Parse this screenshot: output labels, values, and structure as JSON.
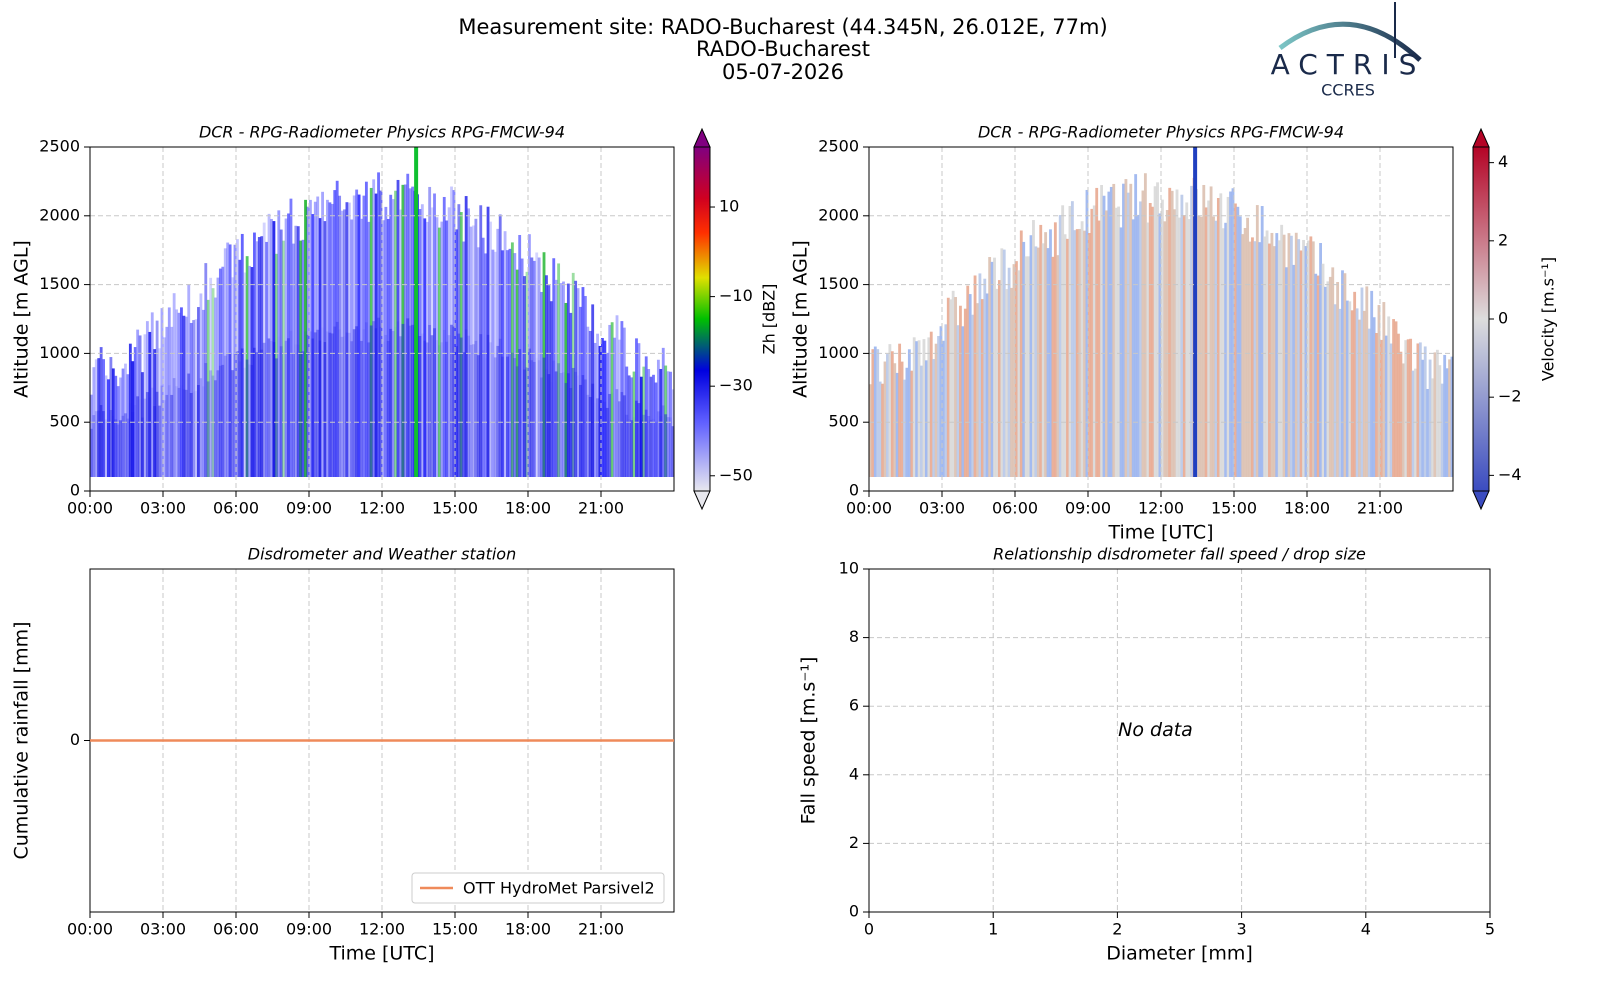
{
  "header": {
    "lines": [
      "Measurement site: RADO-Bucharest (44.345N, 26.012E, 77m)",
      "RADO-Bucharest",
      "05-07-2026"
    ],
    "logo": "ACTRIS",
    "logo_sub": "CCRES"
  },
  "chart_data": [
    {
      "type": "heatmap",
      "title": "DCR - RPG-Radiometer Physics RPG-FMCW-94",
      "ylabel": "Altitude [m AGL]",
      "xlim": [
        0,
        24
      ],
      "xticks": [
        {
          "value": 0,
          "label": "00:00"
        },
        {
          "value": 3,
          "label": "03:00"
        },
        {
          "value": 6,
          "label": "06:00"
        },
        {
          "value": 9,
          "label": "09:00"
        },
        {
          "value": 12,
          "label": "12:00"
        },
        {
          "value": 15,
          "label": "15:00"
        },
        {
          "value": 18,
          "label": "18:00"
        },
        {
          "value": 21,
          "label": "21:00"
        }
      ],
      "ylim": [
        0,
        2500
      ],
      "yticks": [
        0,
        500,
        1000,
        1500,
        2000,
        2500
      ],
      "grid": true,
      "colorbar": {
        "label": "Zh [dBZ]",
        "colormap": "zh",
        "lim": [
          -53.4,
          23.4
        ],
        "ticks": [
          {
            "value": -50,
            "label": "−50"
          },
          {
            "value": -30,
            "label": "−30"
          },
          {
            "value": -10,
            "label": "−10"
          },
          10
        ]
      }
    },
    {
      "type": "heatmap",
      "title": "DCR - RPG-Radiometer Physics RPG-FMCW-94",
      "ylabel": "Altitude [m AGL]",
      "xlabel": "Time [UTC]",
      "xlim": [
        0,
        24
      ],
      "xticks": [
        {
          "value": 0,
          "label": "00:00"
        },
        {
          "value": 3,
          "label": "03:00"
        },
        {
          "value": 6,
          "label": "06:00"
        },
        {
          "value": 9,
          "label": "09:00"
        },
        {
          "value": 12,
          "label": "12:00"
        },
        {
          "value": 15,
          "label": "15:00"
        },
        {
          "value": 18,
          "label": "18:00"
        },
        {
          "value": 21,
          "label": "21:00"
        }
      ],
      "ylim": [
        0,
        2500
      ],
      "yticks": [
        0,
        500,
        1000,
        1500,
        2000,
        2500
      ],
      "grid": true,
      "colorbar": {
        "label": "Velocity [m.s⁻¹]",
        "colormap": "coolwarm",
        "lim": [
          -4.4,
          4.4
        ],
        "ticks": [
          {
            "value": -4,
            "label": "−4"
          },
          {
            "value": -2,
            "label": "−2"
          },
          0,
          2,
          4
        ]
      }
    },
    {
      "type": "line",
      "title": "Disdrometer and Weather station",
      "ylabel": "Cumulative rainfall [mm]",
      "xlabel": "Time [UTC]",
      "xlim": [
        0,
        24
      ],
      "xticks": [
        {
          "value": 0,
          "label": "00:00"
        },
        {
          "value": 3,
          "label": "03:00"
        },
        {
          "value": 6,
          "label": "06:00"
        },
        {
          "value": 9,
          "label": "09:00"
        },
        {
          "value": 12,
          "label": "12:00"
        },
        {
          "value": 15,
          "label": "15:00"
        },
        {
          "value": 18,
          "label": "18:00"
        },
        {
          "value": 21,
          "label": "21:00"
        }
      ],
      "ylim": [
        -0.055,
        0.055
      ],
      "yticks": [
        0
      ],
      "grid": true,
      "legend": "lower right",
      "x": [
        0,
        24
      ],
      "series": [
        {
          "name": "OTT HydroMet Parsivel2",
          "color": "#ef8a5a",
          "values": [
            0,
            0
          ]
        }
      ]
    },
    {
      "type": "scatter",
      "title": "Relationship disdrometer fall speed / drop size",
      "ylabel": "Fall speed [m.s⁻¹]",
      "xlabel": "Diameter [mm]",
      "xlim": [
        0,
        5
      ],
      "xticks": [
        0,
        1,
        2,
        3,
        4,
        5
      ],
      "ylim": [
        0,
        10
      ],
      "yticks": [
        0,
        2,
        4,
        6,
        8,
        10
      ],
      "grid": true,
      "annotation": "No data",
      "x": [],
      "values": []
    }
  ]
}
